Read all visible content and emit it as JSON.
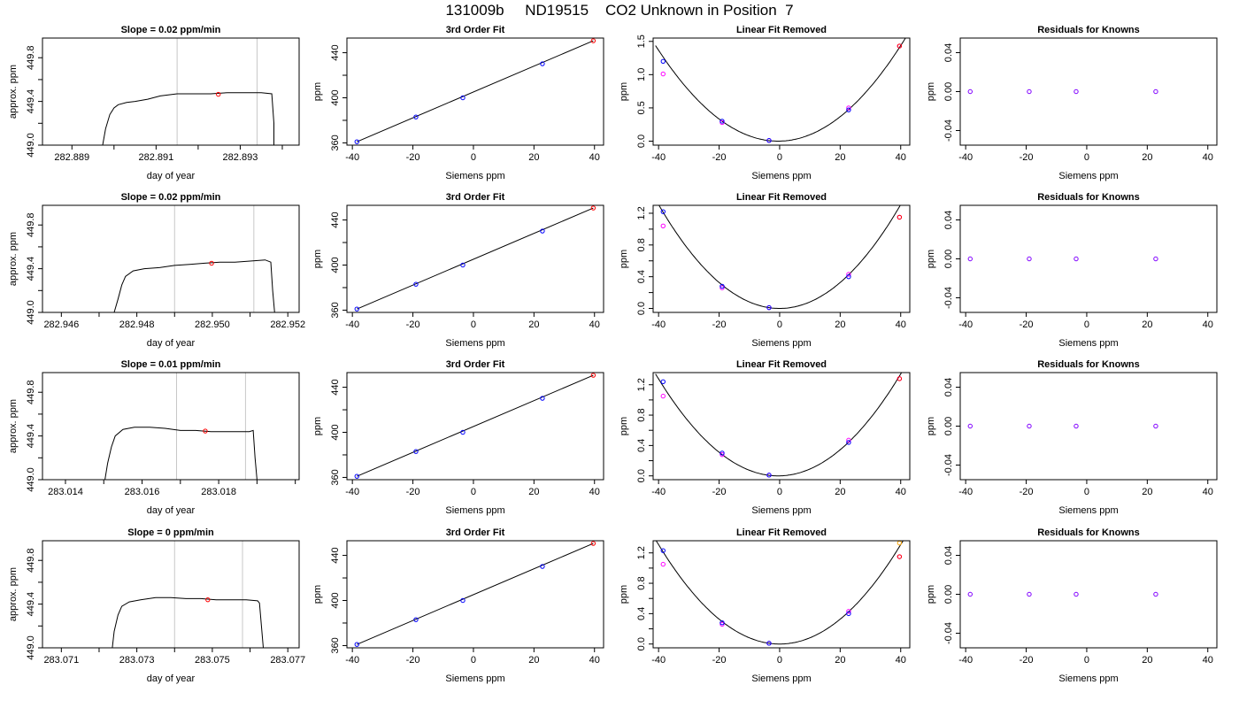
{
  "figure": {
    "title": "131009b     ND19515    CO2 Unknown in Position  7"
  },
  "colors": {
    "trace": "#000000",
    "known_point": "#0000ff",
    "unknown_point": "#ff0000",
    "alt_point": "#ff00ff",
    "orange_point": "#ffa500",
    "residual_point": "#8000ff",
    "window_line": "#c8c8c8"
  },
  "chart_data": [
    {
      "type": "line",
      "title": "Slope =  0.02  ppm/min",
      "xlabel": "day of year",
      "ylabel": "approx. ppm",
      "xlim": [
        282.8883,
        282.8944
      ],
      "ylim": [
        449.0,
        449.98
      ],
      "x_ticks": [
        282.889,
        282.89,
        282.891,
        282.892,
        282.893,
        282.894
      ],
      "x_tick_labels": [
        "282.889",
        "",
        "282.891",
        "",
        "282.893",
        ""
      ],
      "y_ticks": [
        449.0,
        449.2,
        449.4,
        449.6,
        449.8
      ],
      "y_tick_labels": [
        "449.0",
        "",
        "449.4",
        "",
        "449.8"
      ],
      "window_lines": [
        282.8915,
        282.8934
      ],
      "trace": {
        "x": [
          282.88973,
          282.8898,
          282.8899,
          282.89,
          282.8901,
          282.8903,
          282.8905,
          282.8908,
          282.8911,
          282.8915,
          282.8919,
          282.8923,
          282.8927,
          282.8931,
          282.8935,
          282.89375,
          282.8938,
          282.8938
        ],
        "y": [
          449.0,
          449.15,
          449.28,
          449.34,
          449.37,
          449.39,
          449.4,
          449.42,
          449.45,
          449.47,
          449.47,
          449.47,
          449.48,
          449.48,
          449.48,
          449.47,
          449.2,
          449.0
        ]
      },
      "marker": {
        "x": 282.89248,
        "y": 449.465
      }
    },
    {
      "type": "scatter",
      "title": "3rd Order Fit",
      "xlabel": "Siemens ppm",
      "ylabel": "ppm",
      "xlim": [
        -41.8,
        43.0
      ],
      "ylim": [
        358.0,
        453.0
      ],
      "x_ticks": [
        -40,
        -20,
        0,
        20,
        40
      ],
      "x_tick_labels": [
        "-40",
        "-20",
        "0",
        "20",
        "40"
      ],
      "y_ticks": [
        360,
        380,
        400,
        420,
        440
      ],
      "y_tick_labels": [
        "360",
        "",
        "400",
        "",
        "440"
      ],
      "fit_line": {
        "x": [
          -38.5,
          39.6
        ],
        "y": [
          361.0,
          450.6
        ]
      },
      "known_points": {
        "x": [
          -38.5,
          -19.0,
          -3.5,
          22.8
        ],
        "y": [
          361.0,
          383.0,
          400.0,
          430.2
        ]
      },
      "unknown_point": {
        "x": 39.6,
        "y": 450.6
      }
    },
    {
      "type": "scatter",
      "title": "Linear Fit Removed",
      "xlabel": "Siemens ppm",
      "ylabel": "ppm",
      "xlim": [
        -41.8,
        43.0
      ],
      "ylim": [
        -0.06,
        1.55
      ],
      "x_ticks": [
        -40,
        -20,
        0,
        20,
        40
      ],
      "x_tick_labels": [
        "-40",
        "-20",
        "0",
        "20",
        "40"
      ],
      "y_ticks": [
        0.0,
        0.5,
        1.0,
        1.5
      ],
      "y_tick_labels": [
        "0.0",
        "0.5",
        "1.0",
        "1.5"
      ],
      "curve": {
        "a": 0.000876,
        "x0": -0.5,
        "c": 0.0
      },
      "known_points": {
        "x": [
          -38.5,
          -19.0,
          -3.5,
          22.8
        ],
        "y": [
          1.2,
          0.3,
          0.01,
          0.47
        ]
      },
      "alt_points": {
        "x": [
          -38.5,
          -19.0,
          -3.5,
          22.8,
          39.6
        ],
        "y": [
          1.01,
          0.28,
          0.01,
          0.5,
          1.43
        ]
      },
      "unknown_point": {
        "x": 39.6,
        "y": 1.43
      }
    },
    {
      "type": "scatter",
      "title": "Residuals for Knowns",
      "xlabel": "Siemens ppm",
      "ylabel": "ppm",
      "xlim": [
        -41.8,
        43.0
      ],
      "ylim": [
        -0.055,
        0.055
      ],
      "x_ticks": [
        -40,
        -20,
        0,
        20,
        40
      ],
      "x_tick_labels": [
        "-40",
        "-20",
        "0",
        "20",
        "40"
      ],
      "y_ticks": [
        -0.04,
        0.0,
        0.04
      ],
      "y_tick_labels": [
        "-0.04",
        "0.00",
        "0.04"
      ],
      "residual_points": {
        "x": [
          -38.5,
          -19.0,
          -3.5,
          22.8
        ],
        "y": [
          0.0,
          0.0,
          0.0,
          0.0
        ]
      }
    },
    {
      "type": "line",
      "title": "Slope =  0.02  ppm/min",
      "xlabel": "day of year",
      "ylabel": "approx. ppm",
      "xlim": [
        282.9455,
        282.9523
      ],
      "ylim": [
        449.0,
        449.98
      ],
      "x_ticks": [
        282.946,
        282.947,
        282.948,
        282.949,
        282.95,
        282.951,
        282.952
      ],
      "x_tick_labels": [
        "282.946",
        "",
        "282.948",
        "",
        "282.950",
        "",
        "282.952"
      ],
      "y_ticks": [
        449.0,
        449.2,
        449.4,
        449.6,
        449.8
      ],
      "y_tick_labels": [
        "449.0",
        "",
        "449.4",
        "",
        "449.8"
      ],
      "window_lines": [
        282.949,
        282.9511
      ],
      "trace": {
        "x": [
          282.9474,
          282.9475,
          282.9476,
          282.9477,
          282.9479,
          282.9482,
          282.9486,
          282.949,
          282.9494,
          282.9498,
          282.9502,
          282.9506,
          282.951,
          282.9514,
          282.95155,
          282.9516,
          282.95165
        ],
        "y": [
          449.0,
          449.12,
          449.25,
          449.33,
          449.38,
          449.4,
          449.41,
          449.43,
          449.44,
          449.45,
          449.46,
          449.46,
          449.47,
          449.48,
          449.46,
          449.2,
          449.0
        ]
      },
      "marker": {
        "x": 282.94998,
        "y": 449.45
      }
    },
    {
      "type": "scatter",
      "title": "3rd Order Fit",
      "xlabel": "Siemens ppm",
      "ylabel": "ppm",
      "xlim": [
        -41.8,
        43.0
      ],
      "ylim": [
        358.0,
        453.0
      ],
      "x_ticks": [
        -40,
        -20,
        0,
        20,
        40
      ],
      "x_tick_labels": [
        "-40",
        "-20",
        "0",
        "20",
        "40"
      ],
      "y_ticks": [
        360,
        380,
        400,
        420,
        440
      ],
      "y_tick_labels": [
        "360",
        "",
        "400",
        "",
        "440"
      ],
      "fit_line": {
        "x": [
          -38.5,
          39.6
        ],
        "y": [
          361.0,
          450.6
        ]
      },
      "known_points": {
        "x": [
          -38.5,
          -19.0,
          -3.5,
          22.8
        ],
        "y": [
          361.0,
          383.0,
          400.0,
          430.2
        ]
      },
      "unknown_point": {
        "x": 39.6,
        "y": 450.6
      }
    },
    {
      "type": "scatter",
      "title": "Linear Fit Removed",
      "xlabel": "Siemens ppm",
      "ylabel": "ppm",
      "xlim": [
        -41.8,
        43.0
      ],
      "ylim": [
        -0.05,
        1.3
      ],
      "x_ticks": [
        -40,
        -20,
        0,
        20,
        40
      ],
      "x_tick_labels": [
        "-40",
        "-20",
        "0",
        "20",
        "40"
      ],
      "y_ticks": [
        0.0,
        0.2,
        0.4,
        0.6,
        0.8,
        1.0,
        1.2
      ],
      "y_tick_labels": [
        "0.0",
        "",
        "0.4",
        "",
        "0.8",
        "",
        "1.2"
      ],
      "curve": {
        "a": 0.000818,
        "x0": 0.0,
        "c": 0.0
      },
      "known_points": {
        "x": [
          -38.5,
          -19.0,
          -3.5,
          22.8
        ],
        "y": [
          1.22,
          0.28,
          0.01,
          0.4
        ]
      },
      "alt_points": {
        "x": [
          -38.5,
          -19.0,
          -3.5,
          22.8,
          39.6
        ],
        "y": [
          1.04,
          0.26,
          0.01,
          0.43,
          1.15
        ]
      },
      "unknown_point": {
        "x": 39.6,
        "y": 1.15
      }
    },
    {
      "type": "scatter",
      "title": "Residuals for Knowns",
      "xlabel": "Siemens ppm",
      "ylabel": "ppm",
      "xlim": [
        -41.8,
        43.0
      ],
      "ylim": [
        -0.055,
        0.055
      ],
      "x_ticks": [
        -40,
        -20,
        0,
        20,
        40
      ],
      "x_tick_labels": [
        "-40",
        "-20",
        "0",
        "20",
        "40"
      ],
      "y_ticks": [
        -0.04,
        0.0,
        0.04
      ],
      "y_tick_labels": [
        "-0.04",
        "0.00",
        "0.04"
      ],
      "residual_points": {
        "x": [
          -38.5,
          -19.0,
          -3.5,
          22.8
        ],
        "y": [
          0.0,
          0.0,
          0.0,
          0.0
        ]
      }
    },
    {
      "type": "line",
      "title": "Slope =  0.01  ppm/min",
      "xlabel": "day of year",
      "ylabel": "approx. ppm",
      "xlim": [
        283.0134,
        283.0201
      ],
      "ylim": [
        449.0,
        449.98
      ],
      "x_ticks": [
        283.014,
        283.015,
        283.016,
        283.017,
        283.018,
        283.019,
        283.02
      ],
      "x_tick_labels": [
        "283.014",
        "",
        "283.016",
        "",
        "283.018",
        "",
        ""
      ],
      "y_ticks": [
        449.0,
        449.2,
        449.4,
        449.6,
        449.8
      ],
      "y_tick_labels": [
        "449.0",
        "",
        "449.4",
        "",
        "449.8"
      ],
      "window_lines": [
        283.0169,
        283.0187
      ],
      "trace": {
        "x": [
          283.01503,
          283.0151,
          283.0152,
          283.0153,
          283.0155,
          283.0158,
          283.0162,
          283.0166,
          283.017,
          283.0174,
          283.0178,
          283.0182,
          283.0186,
          283.0188,
          283.0189,
          283.01895,
          283.019
        ],
        "y": [
          449.0,
          449.15,
          449.3,
          449.4,
          449.46,
          449.48,
          449.48,
          449.47,
          449.45,
          449.45,
          449.44,
          449.44,
          449.44,
          449.44,
          449.45,
          449.2,
          449.0
        ]
      },
      "marker": {
        "x": 283.01765,
        "y": 449.445
      }
    },
    {
      "type": "scatter",
      "title": "3rd Order Fit",
      "xlabel": "Siemens ppm",
      "ylabel": "ppm",
      "xlim": [
        -41.8,
        43.0
      ],
      "ylim": [
        358.0,
        453.0
      ],
      "x_ticks": [
        -40,
        -20,
        0,
        20,
        40
      ],
      "x_tick_labels": [
        "-40",
        "-20",
        "0",
        "20",
        "40"
      ],
      "y_ticks": [
        360,
        380,
        400,
        420,
        440
      ],
      "y_tick_labels": [
        "360",
        "",
        "400",
        "",
        "440"
      ],
      "fit_line": {
        "x": [
          -38.5,
          39.6
        ],
        "y": [
          361.0,
          450.6
        ]
      },
      "known_points": {
        "x": [
          -38.5,
          -19.0,
          -3.5,
          22.8
        ],
        "y": [
          361.0,
          383.0,
          400.0,
          430.2
        ]
      },
      "unknown_point": {
        "x": 39.6,
        "y": 450.6
      }
    },
    {
      "type": "scatter",
      "title": "Linear Fit Removed",
      "xlabel": "Siemens ppm",
      "ylabel": "ppm",
      "xlim": [
        -41.8,
        43.0
      ],
      "ylim": [
        -0.05,
        1.36
      ],
      "x_ticks": [
        -40,
        -20,
        0,
        20,
        40
      ],
      "x_tick_labels": [
        "-40",
        "-20",
        "0",
        "20",
        "40"
      ],
      "y_ticks": [
        0.0,
        0.2,
        0.4,
        0.6,
        0.8,
        1.0,
        1.2
      ],
      "y_tick_labels": [
        "0.0",
        "",
        "0.4",
        "",
        "0.8",
        "",
        "1.2"
      ],
      "curve": {
        "a": 0.000818,
        "x0": -0.5,
        "c": 0.0
      },
      "known_points": {
        "x": [
          -38.5,
          -19.0,
          -3.5,
          22.8
        ],
        "y": [
          1.24,
          0.3,
          0.01,
          0.44
        ]
      },
      "alt_points": {
        "x": [
          -38.5,
          -19.0,
          -3.5,
          22.8,
          39.6
        ],
        "y": [
          1.05,
          0.28,
          0.01,
          0.47,
          1.28
        ]
      },
      "unknown_point": {
        "x": 39.6,
        "y": 1.28
      }
    },
    {
      "type": "scatter",
      "title": "Residuals for Knowns",
      "xlabel": "Siemens ppm",
      "ylabel": "ppm",
      "xlim": [
        -41.8,
        43.0
      ],
      "ylim": [
        -0.055,
        0.055
      ],
      "x_ticks": [
        -40,
        -20,
        0,
        20,
        40
      ],
      "x_tick_labels": [
        "-40",
        "-20",
        "0",
        "20",
        "40"
      ],
      "y_ticks": [
        -0.04,
        0.0,
        0.04
      ],
      "y_tick_labels": [
        "-0.04",
        "0.00",
        "0.04"
      ],
      "residual_points": {
        "x": [
          -38.5,
          -19.0,
          -3.5,
          22.8
        ],
        "y": [
          0.0,
          0.0,
          0.0,
          0.0
        ]
      }
    },
    {
      "type": "line",
      "title": "Slope =  0  ppm/min",
      "xlabel": "day of year",
      "ylabel": "approx. ppm",
      "xlim": [
        283.0705,
        283.0773
      ],
      "ylim": [
        449.0,
        449.98
      ],
      "x_ticks": [
        283.071,
        283.072,
        283.073,
        283.074,
        283.075,
        283.076,
        283.077
      ],
      "x_tick_labels": [
        "283.071",
        "",
        "283.073",
        "",
        "283.075",
        "",
        "283.077"
      ],
      "y_ticks": [
        449.0,
        449.2,
        449.4,
        449.6,
        449.8
      ],
      "y_tick_labels": [
        "449.0",
        "",
        "449.4",
        "",
        "449.8"
      ],
      "window_lines": [
        283.074,
        283.0758
      ],
      "trace": {
        "x": [
          283.07235,
          283.0724,
          283.0725,
          283.0726,
          283.0728,
          283.0731,
          283.0735,
          283.0739,
          283.0743,
          283.0747,
          283.0751,
          283.0755,
          283.0759,
          283.0762,
          283.07625,
          283.0763,
          283.07635
        ],
        "y": [
          449.0,
          449.15,
          449.3,
          449.38,
          449.42,
          449.44,
          449.46,
          449.46,
          449.45,
          449.45,
          449.44,
          449.44,
          449.44,
          449.43,
          449.41,
          449.2,
          449.0
        ]
      },
      "marker": {
        "x": 283.07488,
        "y": 449.44
      }
    },
    {
      "type": "scatter",
      "title": "3rd Order Fit",
      "xlabel": "Siemens ppm",
      "ylabel": "ppm",
      "xlim": [
        -41.8,
        43.0
      ],
      "ylim": [
        358.0,
        453.0
      ],
      "x_ticks": [
        -40,
        -20,
        0,
        20,
        40
      ],
      "x_tick_labels": [
        "-40",
        "-20",
        "0",
        "20",
        "40"
      ],
      "y_ticks": [
        360,
        380,
        400,
        420,
        440
      ],
      "y_tick_labels": [
        "360",
        "",
        "400",
        "",
        "440"
      ],
      "fit_line": {
        "x": [
          -38.5,
          39.6
        ],
        "y": [
          361.0,
          450.6
        ]
      },
      "known_points": {
        "x": [
          -38.5,
          -19.0,
          -3.5,
          22.8
        ],
        "y": [
          361.0,
          383.0,
          400.0,
          430.2
        ]
      },
      "unknown_point": {
        "x": 39.6,
        "y": 450.6
      }
    },
    {
      "type": "scatter",
      "title": "Linear Fit Removed",
      "xlabel": "Siemens ppm",
      "ylabel": "ppm",
      "xlim": [
        -41.8,
        43.0
      ],
      "ylim": [
        -0.05,
        1.36
      ],
      "x_ticks": [
        -40,
        -20,
        0,
        20,
        40
      ],
      "x_tick_labels": [
        "-40",
        "-20",
        "0",
        "20",
        "40"
      ],
      "y_ticks": [
        0.0,
        0.2,
        0.4,
        0.6,
        0.8,
        1.0,
        1.2
      ],
      "y_tick_labels": [
        "0.0",
        "",
        "0.4",
        "",
        "0.8",
        "",
        "1.2"
      ],
      "curve": {
        "a": 0.000818,
        "x0": 0.0,
        "c": 0.0
      },
      "known_points": {
        "x": [
          -38.5,
          -19.0,
          -3.5,
          22.8
        ],
        "y": [
          1.23,
          0.28,
          0.01,
          0.4
        ]
      },
      "alt_points": {
        "x": [
          -38.5,
          -19.0,
          -3.5,
          22.8,
          39.6
        ],
        "y": [
          1.05,
          0.26,
          0.01,
          0.43,
          1.15
        ]
      },
      "unknown_point": {
        "x": 39.6,
        "y": 1.15
      },
      "orange_point": {
        "x": 39.6,
        "y": 1.33
      }
    },
    {
      "type": "scatter",
      "title": "Residuals for Knowns",
      "xlabel": "Siemens ppm",
      "ylabel": "ppm",
      "xlim": [
        -41.8,
        43.0
      ],
      "ylim": [
        -0.055,
        0.055
      ],
      "x_ticks": [
        -40,
        -20,
        0,
        20,
        40
      ],
      "x_tick_labels": [
        "-40",
        "-20",
        "0",
        "20",
        "40"
      ],
      "y_ticks": [
        -0.04,
        0.0,
        0.04
      ],
      "y_tick_labels": [
        "-0.04",
        "0.00",
        "0.04"
      ],
      "residual_points": {
        "x": [
          -38.5,
          -19.0,
          -3.5,
          22.8
        ],
        "y": [
          0.0,
          0.0,
          0.0,
          0.0
        ]
      }
    }
  ]
}
